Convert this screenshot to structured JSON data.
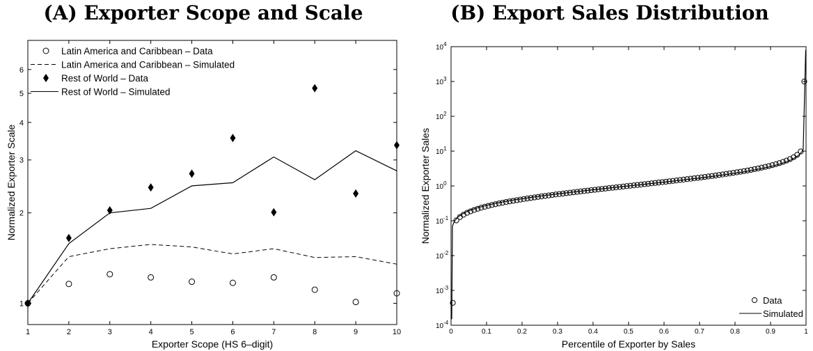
{
  "chart_data": [
    {
      "panel": "A",
      "type": "scatter",
      "title": "(A) Exporter Scope and Scale",
      "xlabel": "Exporter Scope (HS 6–digit)",
      "ylabel": "Normalized Exporter Scale",
      "xlim": [
        1,
        10
      ],
      "ylim": [
        0.85,
        7.5
      ],
      "yscale": "log",
      "x": [
        1,
        2,
        3,
        4,
        5,
        6,
        7,
        8,
        9,
        10
      ],
      "xticks": [
        "1",
        "2",
        "3",
        "4",
        "5",
        "6",
        "7",
        "8",
        "9",
        "10"
      ],
      "yticks": [
        1,
        2,
        3,
        4,
        5,
        6
      ],
      "ytick_labels": [
        "1",
        "2",
        "3",
        "4",
        "5",
        "6"
      ],
      "grid": false,
      "legend_position": "top-left",
      "series": [
        {
          "name": "Latin America and Caribbean – Data",
          "style": "open-circle",
          "values": [
            1.0,
            1.16,
            1.25,
            1.22,
            1.18,
            1.17,
            1.22,
            1.11,
            1.01,
            1.08
          ]
        },
        {
          "name": "Latin America and Caribbean – Simulated",
          "style": "dashed-line",
          "values": [
            1.0,
            1.43,
            1.52,
            1.57,
            1.54,
            1.46,
            1.52,
            1.42,
            1.43,
            1.35
          ]
        },
        {
          "name": "Rest of World – Data",
          "style": "filled-diamond",
          "values": [
            1.0,
            1.65,
            2.04,
            2.43,
            2.7,
            3.55,
            2.01,
            5.2,
            2.32,
            3.36
          ]
        },
        {
          "name": "Rest of World – Simulated",
          "style": "solid-line",
          "values": [
            1.0,
            1.58,
            2.0,
            2.07,
            2.46,
            2.52,
            3.07,
            2.58,
            3.22,
            2.76
          ]
        }
      ]
    },
    {
      "panel": "B",
      "type": "scatter",
      "title": "(B) Export Sales Distribution",
      "xlabel": "Percentile of Exporter by Sales",
      "ylabel": "Normalized Exporter Sales",
      "xlim": [
        0,
        1
      ],
      "yscale": "log",
      "ylim_exp": [
        -4,
        4
      ],
      "xticks": [
        "0",
        "0.1",
        "0.2",
        "0.3",
        "0.4",
        "0.5",
        "0.6",
        "0.7",
        "0.8",
        "0.9",
        "1"
      ],
      "ytick_base": "10",
      "ytick_exponents": [
        "-4",
        "-3",
        "-2",
        "-1",
        "0",
        "1",
        "2",
        "3",
        "4"
      ],
      "grid": false,
      "legend_position": "bottom-right",
      "series": [
        {
          "name": "Data",
          "style": "open-circle",
          "note": "approximately log-normal quantiles, normalized so median = 1",
          "x_start": 0.005,
          "x_step": 0.01,
          "count": 100,
          "sigma": 1.05,
          "median": 1,
          "end_points": [
            {
              "x": 0.005,
              "y": 0.00044
            },
            {
              "x": 0.995,
              "y": 1000
            }
          ]
        },
        {
          "name": "Simulated",
          "style": "solid-line",
          "sigma": 1.0,
          "median": 1,
          "end_points": [
            {
              "x": 0.002,
              "y": 0.00015
            },
            {
              "x": 0.999,
              "y": 8000
            }
          ]
        }
      ]
    }
  ]
}
